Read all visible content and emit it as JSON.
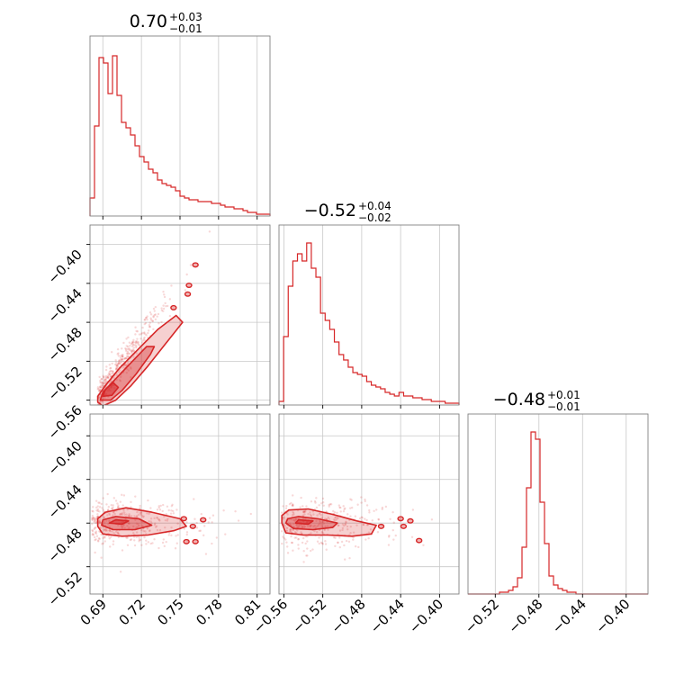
{
  "chart_data": {
    "type": "corner",
    "color": "#d62728",
    "params": [
      {
        "title": "0.70",
        "err_plus": "+0.03",
        "err_minus": "−0.01",
        "range": [
          0.68,
          0.82
        ],
        "ticks": [
          0.69,
          0.72,
          0.75,
          0.78,
          0.81
        ],
        "tick_labels": [
          "0.69",
          "0.72",
          "0.75",
          "0.78",
          "0.81"
        ],
        "hist": [
          0.1,
          0.5,
          0.88,
          0.85,
          0.68,
          0.89,
          0.67,
          0.52,
          0.49,
          0.45,
          0.39,
          0.33,
          0.3,
          0.26,
          0.24,
          0.2,
          0.18,
          0.17,
          0.16,
          0.14,
          0.11,
          0.1,
          0.09,
          0.09,
          0.08,
          0.08,
          0.08,
          0.07,
          0.07,
          0.06,
          0.05,
          0.05,
          0.04,
          0.04,
          0.03,
          0.02,
          0.02,
          0.01,
          0.01,
          0.01
        ]
      },
      {
        "title": "−0.52",
        "err_plus": "+0.04",
        "err_minus": "−0.02",
        "range": [
          -0.565,
          -0.38
        ],
        "ticks": [
          -0.56,
          -0.52,
          -0.48,
          -0.44,
          -0.4
        ],
        "tick_labels": [
          "−0.56",
          "−0.52",
          "−0.48",
          "−0.44",
          "−0.40"
        ],
        "hist": [
          0.02,
          0.38,
          0.66,
          0.8,
          0.84,
          0.8,
          0.9,
          0.76,
          0.71,
          0.51,
          0.47,
          0.42,
          0.35,
          0.28,
          0.25,
          0.21,
          0.18,
          0.17,
          0.16,
          0.13,
          0.11,
          0.1,
          0.09,
          0.07,
          0.06,
          0.05,
          0.07,
          0.05,
          0.05,
          0.04,
          0.04,
          0.03,
          0.03,
          0.02,
          0.02,
          0.02,
          0.01,
          0.01,
          0.01
        ]
      },
      {
        "title": "−0.48",
        "err_plus": "+0.01",
        "err_minus": "−0.01",
        "range": [
          -0.545,
          -0.38
        ],
        "ticks": [
          -0.52,
          -0.48,
          -0.44,
          -0.4
        ],
        "tick_labels": [
          "−0.52",
          "−0.48",
          "−0.44",
          "−0.40"
        ],
        "hist": [
          0,
          0,
          0,
          0,
          0,
          0,
          0,
          0.01,
          0.01,
          0.02,
          0.04,
          0.09,
          0.26,
          0.59,
          0.9,
          0.86,
          0.51,
          0.28,
          0.1,
          0.05,
          0.03,
          0.02,
          0.01,
          0.01,
          0.0,
          0.0,
          0.0,
          0.0,
          0.0,
          0.0,
          0.0,
          0.0,
          0.0,
          0.0,
          0.0,
          0.0,
          0.0,
          0.0,
          0.0,
          0.0
        ]
      }
    ],
    "pairs": [
      {
        "x_param": 0,
        "y_param": 1,
        "y_ticks": [
          -0.56,
          -0.52,
          -0.48,
          -0.44,
          -0.4
        ],
        "y_tick_labels": [
          "−0.56",
          "−0.52",
          "−0.48",
          "−0.44",
          "−0.40"
        ],
        "relation": "y ≈ -0.555 + 1.85 * (x - 0.685)",
        "contours": [
          [
            [
              0.686,
              -0.562
            ],
            [
              0.69,
              -0.566
            ],
            [
              0.7,
              -0.56
            ],
            [
              0.712,
              -0.545
            ],
            [
              0.725,
              -0.525
            ],
            [
              0.74,
              -0.5
            ],
            [
              0.752,
              -0.48
            ],
            [
              0.747,
              -0.473
            ],
            [
              0.733,
              -0.487
            ],
            [
              0.718,
              -0.507
            ],
            [
              0.703,
              -0.527
            ],
            [
              0.692,
              -0.545
            ],
            [
              0.686,
              -0.556
            ]
          ],
          [
            [
              0.688,
              -0.56
            ],
            [
              0.696,
              -0.56
            ],
            [
              0.705,
              -0.55
            ],
            [
              0.716,
              -0.533
            ],
            [
              0.727,
              -0.513
            ],
            [
              0.73,
              -0.505
            ],
            [
              0.724,
              -0.505
            ],
            [
              0.713,
              -0.52
            ],
            [
              0.7,
              -0.538
            ],
            [
              0.69,
              -0.552
            ]
          ],
          [
            [
              0.69,
              -0.556
            ],
            [
              0.697,
              -0.555
            ],
            [
              0.702,
              -0.547
            ],
            [
              0.698,
              -0.542
            ],
            [
              0.692,
              -0.549
            ]
          ]
        ],
        "islands": [
          [
            0.757,
            -0.442
          ],
          [
            0.756,
            -0.451
          ],
          [
            0.762,
            -0.421
          ],
          [
            0.745,
            -0.465
          ]
        ]
      },
      {
        "x_param": 0,
        "y_param": 2,
        "y_ticks": [
          -0.52,
          -0.48,
          -0.44,
          -0.4
        ],
        "y_tick_labels": [
          "−0.52",
          "−0.48",
          "−0.44",
          "−0.40"
        ],
        "contours": [
          [
            [
              0.686,
              -0.483
            ],
            [
              0.69,
              -0.49
            ],
            [
              0.705,
              -0.492
            ],
            [
              0.725,
              -0.491
            ],
            [
              0.745,
              -0.487
            ],
            [
              0.755,
              -0.483
            ],
            [
              0.75,
              -0.476
            ],
            [
              0.728,
              -0.47
            ],
            [
              0.708,
              -0.466
            ],
            [
              0.692,
              -0.47
            ],
            [
              0.686,
              -0.476
            ]
          ],
          [
            [
              0.689,
              -0.482
            ],
            [
              0.698,
              -0.486
            ],
            [
              0.715,
              -0.486
            ],
            [
              0.728,
              -0.482
            ],
            [
              0.718,
              -0.476
            ],
            [
              0.7,
              -0.474
            ],
            [
              0.69,
              -0.477
            ]
          ],
          [
            [
              0.695,
              -0.48
            ],
            [
              0.705,
              -0.481
            ],
            [
              0.71,
              -0.478
            ],
            [
              0.7,
              -0.477
            ]
          ]
        ],
        "islands": [
          [
            0.753,
            -0.476
          ],
          [
            0.768,
            -0.477
          ],
          [
            0.755,
            -0.497
          ],
          [
            0.762,
            -0.497
          ],
          [
            0.76,
            -0.483
          ]
        ]
      },
      {
        "x_param": 1,
        "y_param": 2,
        "y_ticks": [
          -0.52,
          -0.48,
          -0.44,
          -0.4
        ],
        "y_tick_labels": [
          "−0.52",
          "−0.48",
          "−0.44",
          "−0.40"
        ],
        "contours": [
          [
            [
              -0.562,
              -0.48
            ],
            [
              -0.558,
              -0.489
            ],
            [
              -0.54,
              -0.491
            ],
            [
              -0.515,
              -0.491
            ],
            [
              -0.49,
              -0.492
            ],
            [
              -0.47,
              -0.49
            ],
            [
              -0.465,
              -0.482
            ],
            [
              -0.485,
              -0.478
            ],
            [
              -0.51,
              -0.472
            ],
            [
              -0.535,
              -0.467
            ],
            [
              -0.555,
              -0.468
            ],
            [
              -0.562,
              -0.473
            ]
          ],
          [
            [
              -0.558,
              -0.48
            ],
            [
              -0.55,
              -0.485
            ],
            [
              -0.53,
              -0.486
            ],
            [
              -0.51,
              -0.484
            ],
            [
              -0.505,
              -0.48
            ],
            [
              -0.525,
              -0.476
            ],
            [
              -0.545,
              -0.474
            ],
            [
              -0.556,
              -0.476
            ]
          ],
          [
            [
              -0.548,
              -0.48
            ],
            [
              -0.535,
              -0.481
            ],
            [
              -0.53,
              -0.478
            ],
            [
              -0.545,
              -0.477
            ]
          ]
        ],
        "islands": [
          [
            -0.44,
            -0.476
          ],
          [
            -0.437,
            -0.483
          ],
          [
            -0.43,
            -0.478
          ],
          [
            -0.46,
            -0.483
          ],
          [
            -0.421,
            -0.496
          ]
        ]
      }
    ]
  }
}
